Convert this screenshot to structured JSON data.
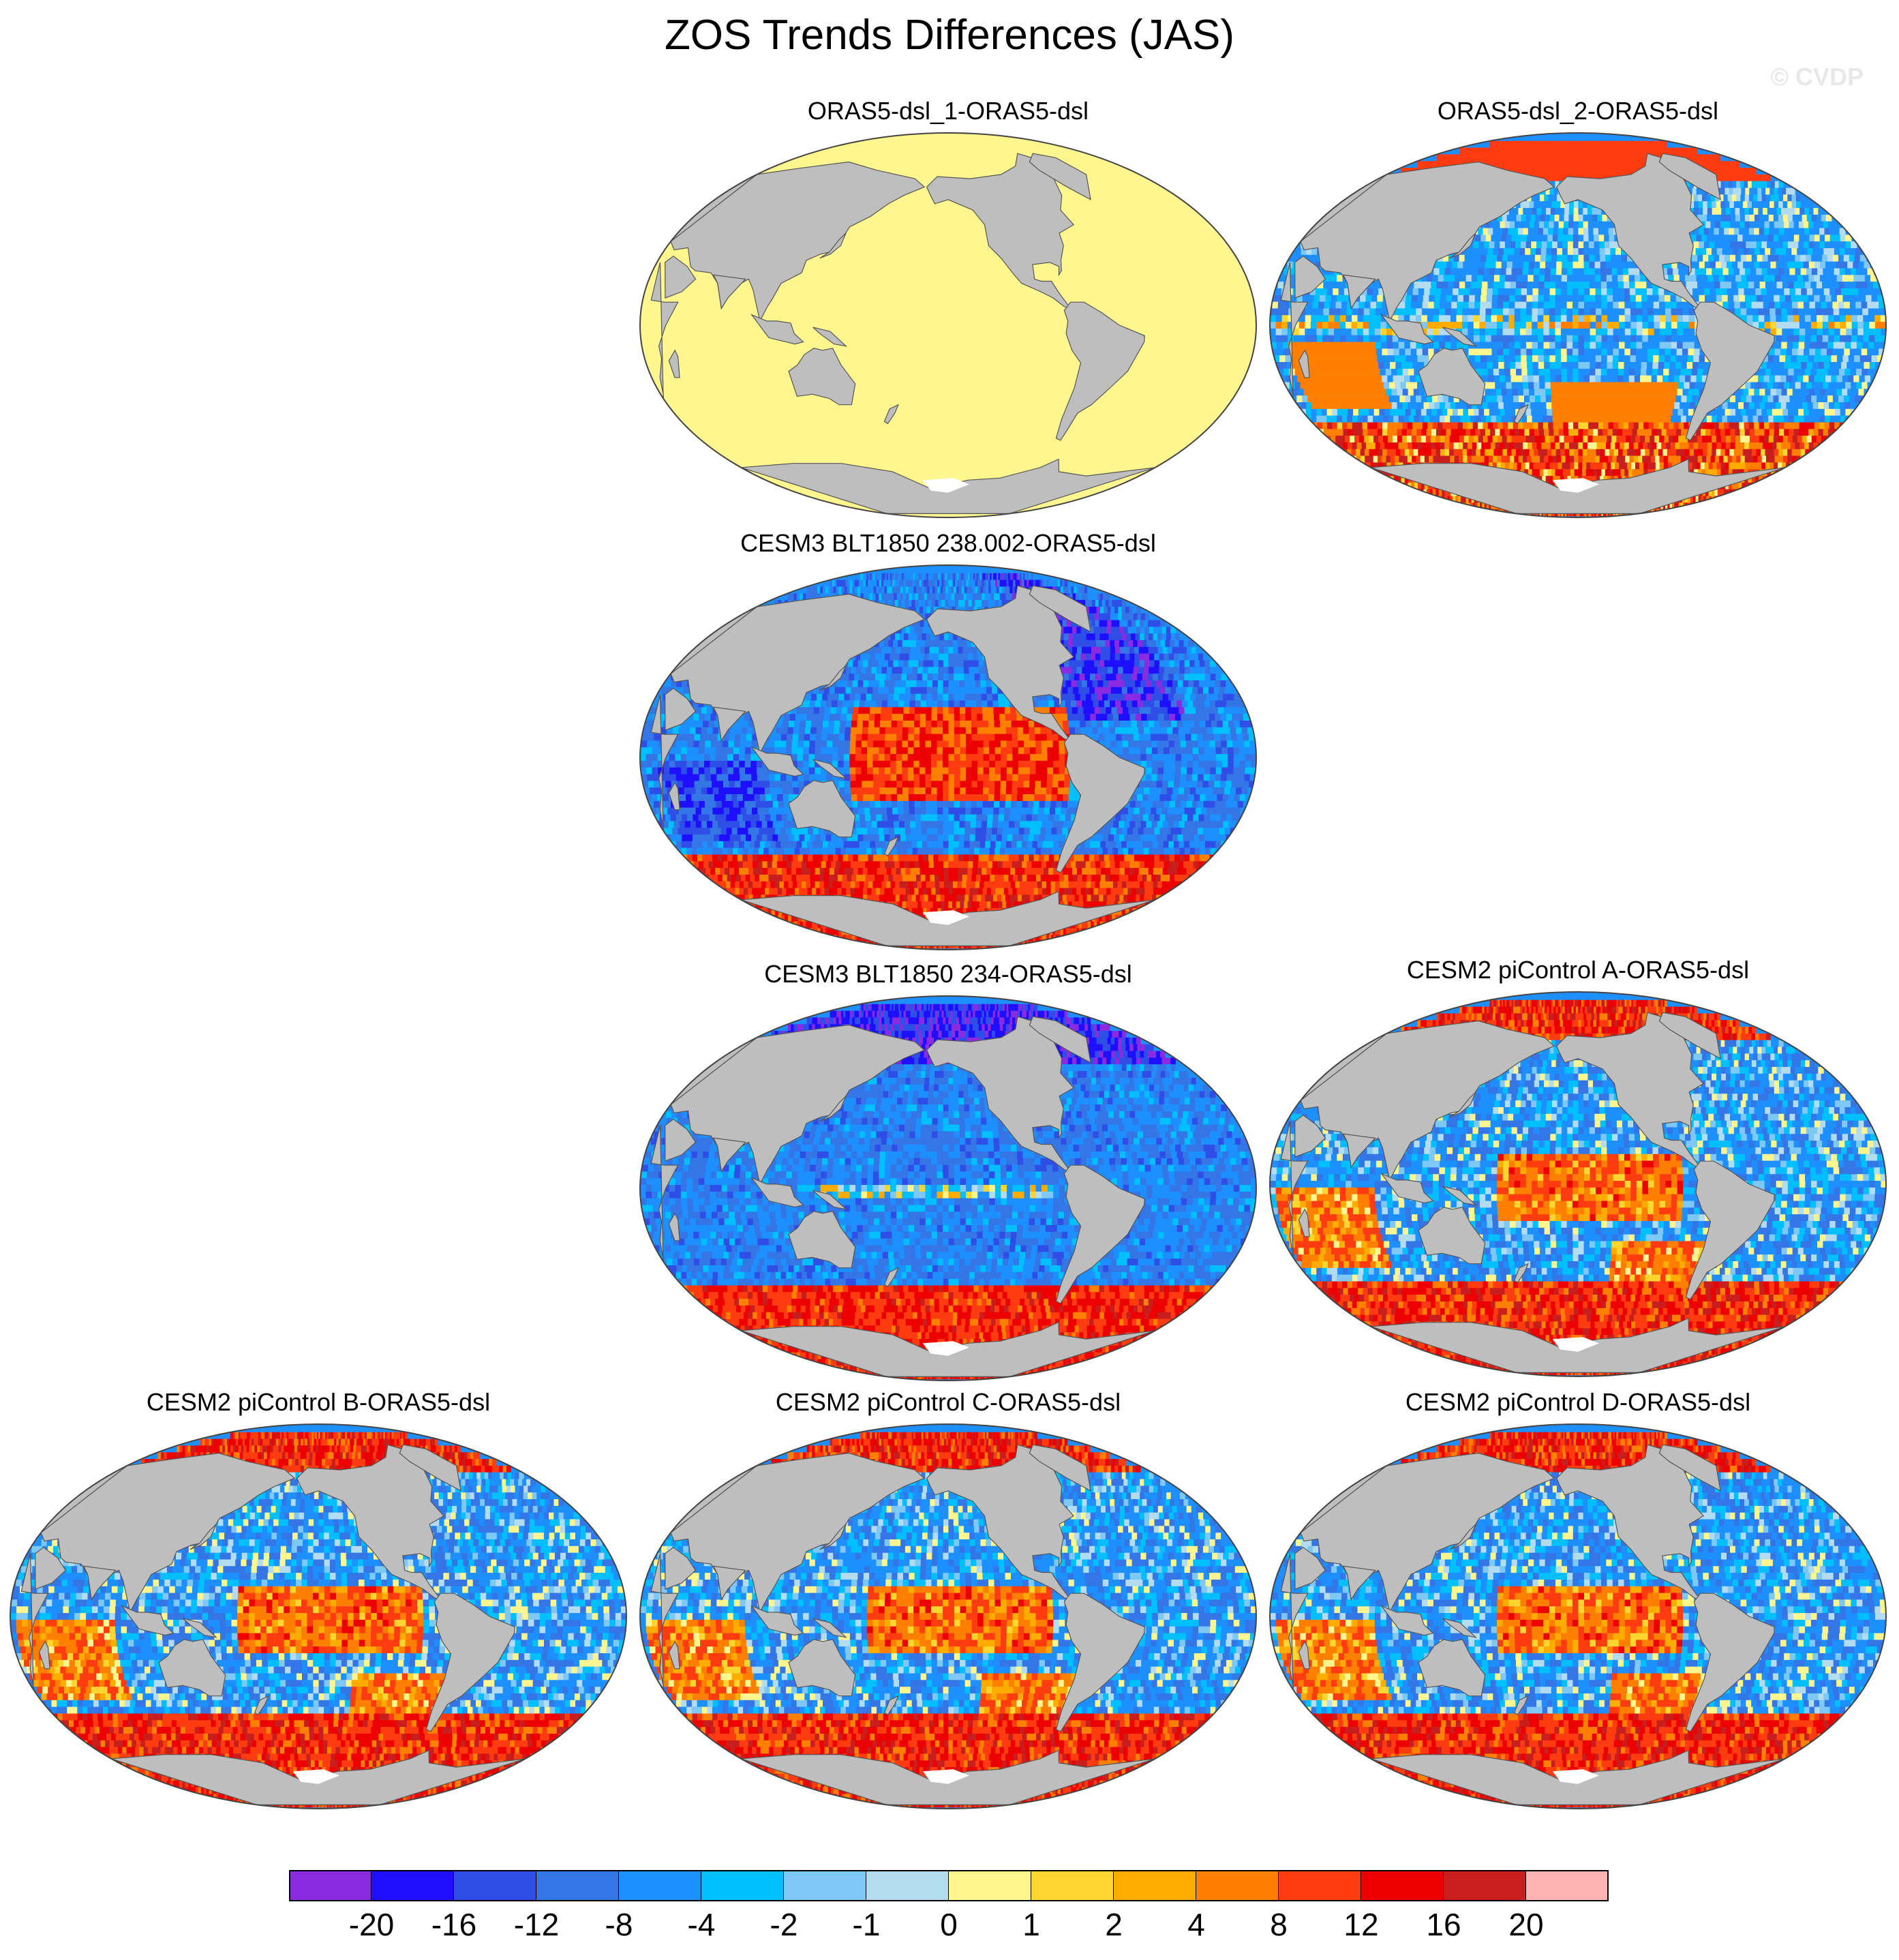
{
  "title": "ZOS Trends Differences (JAS)",
  "copyright": "© CVDP",
  "panels": [
    {
      "id": "p1",
      "title": "ORAS5-dsl_1-ORAS5-dsl",
      "style": "flat"
    },
    {
      "id": "p2",
      "title": "ORAS5-dsl_2-ORAS5-dsl",
      "style": "mixed"
    },
    {
      "id": "p3",
      "title": "CESM3 BLT1850 238.002-ORAS5-dsl",
      "style": "warm-pacific"
    },
    {
      "id": "p4",
      "title": "CESM3 BLT1850 234-ORAS5-dsl",
      "style": "cool"
    },
    {
      "id": "p5",
      "title": "CESM2 piControl A-ORAS5-dsl",
      "style": "mixed-warm"
    },
    {
      "id": "p6",
      "title": "CESM2 piControl B-ORAS5-dsl",
      "style": "mixed-warm"
    },
    {
      "id": "p7",
      "title": "CESM2 piControl C-ORAS5-dsl",
      "style": "mixed-warm"
    },
    {
      "id": "p8",
      "title": "CESM2 piControl D-ORAS5-dsl",
      "style": "mixed-warm"
    }
  ],
  "colorbar": {
    "colors": [
      "#8a2be2",
      "#1e0fff",
      "#2f4ee8",
      "#3476e6",
      "#1e8fff",
      "#00bfff",
      "#7ec8f5",
      "#b4dcf0",
      "#fff68f",
      "#ffd62f",
      "#ffac00",
      "#ff7f00",
      "#ff3b10",
      "#ec0000",
      "#c81e1e",
      "#ffb4b4"
    ],
    "labels": [
      "-20",
      "-16",
      "-12",
      "-8",
      "-4",
      "-2",
      "-1",
      "0",
      "1",
      "2",
      "4",
      "8",
      "12",
      "16",
      "20"
    ]
  },
  "colors": {
    "land": "#bebebe",
    "flat_ocean": "#fff68f"
  }
}
